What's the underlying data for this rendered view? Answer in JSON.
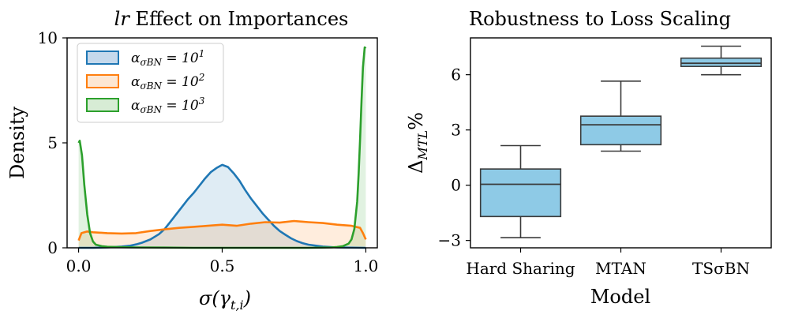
{
  "chart_data": [
    {
      "type": "area",
      "title_italic": "lr",
      "title_rest": " Effect on Importances",
      "xlabel": "σ(γt,i)",
      "ylabel": "Density",
      "xlim": [
        -0.04,
        1.04
      ],
      "ylim": [
        0,
        10
      ],
      "xticks": [
        "0.0",
        "0.5",
        "1.0"
      ],
      "xtick_values": [
        0.0,
        0.5,
        1.0
      ],
      "yticks": [
        "0",
        "5",
        "10"
      ],
      "ytick_values": [
        0,
        5,
        10
      ],
      "legend_position": "top-left",
      "series": [
        {
          "name": "ασBN = 10¹",
          "color": "#1f77b4",
          "fill": "#c5d9ec",
          "x": [
            0.0,
            0.05,
            0.1,
            0.15,
            0.18,
            0.2,
            0.22,
            0.25,
            0.28,
            0.3,
            0.32,
            0.34,
            0.36,
            0.38,
            0.4,
            0.42,
            0.44,
            0.46,
            0.48,
            0.5,
            0.52,
            0.54,
            0.56,
            0.58,
            0.6,
            0.62,
            0.64,
            0.66,
            0.68,
            0.7,
            0.72,
            0.74,
            0.76,
            0.78,
            0.8,
            0.85,
            0.9,
            1.0
          ],
          "y": [
            0.0,
            0.0,
            0.02,
            0.06,
            0.1,
            0.16,
            0.24,
            0.4,
            0.65,
            0.9,
            1.25,
            1.6,
            1.95,
            2.3,
            2.6,
            2.95,
            3.3,
            3.6,
            3.8,
            3.95,
            3.85,
            3.55,
            3.2,
            2.75,
            2.35,
            2.0,
            1.65,
            1.35,
            1.05,
            0.8,
            0.62,
            0.45,
            0.32,
            0.22,
            0.15,
            0.06,
            0.02,
            0.0
          ]
        },
        {
          "name": "ασBN = 10²",
          "color": "#ff7f0e",
          "fill": "#fde7d3",
          "x": [
            0.0,
            0.01,
            0.03,
            0.05,
            0.1,
            0.15,
            0.2,
            0.25,
            0.3,
            0.35,
            0.4,
            0.45,
            0.5,
            0.55,
            0.6,
            0.65,
            0.7,
            0.75,
            0.8,
            0.85,
            0.9,
            0.95,
            0.98,
            0.99,
            1.0
          ],
          "y": [
            0.35,
            0.7,
            0.78,
            0.74,
            0.7,
            0.68,
            0.7,
            0.8,
            0.88,
            0.95,
            1.0,
            1.05,
            1.1,
            1.05,
            1.15,
            1.22,
            1.2,
            1.28,
            1.22,
            1.18,
            1.1,
            1.05,
            0.95,
            0.7,
            0.4
          ]
        },
        {
          "name": "ασBN = 10³",
          "color": "#2ca02c",
          "fill": "#d7ecd5",
          "x": [
            0.0,
            0.004,
            0.012,
            0.02,
            0.03,
            0.04,
            0.05,
            0.06,
            0.08,
            0.1,
            0.15,
            0.2,
            0.3,
            0.4,
            0.5,
            0.6,
            0.7,
            0.8,
            0.85,
            0.88,
            0.9,
            0.92,
            0.94,
            0.95,
            0.96,
            0.97,
            0.975,
            0.98,
            0.985,
            0.99,
            0.996,
            1.0
          ],
          "y": [
            5.0,
            5.1,
            4.4,
            3.0,
            1.6,
            0.7,
            0.3,
            0.15,
            0.08,
            0.05,
            0.03,
            0.02,
            0.01,
            0.0,
            0.0,
            0.0,
            0.0,
            0.0,
            0.01,
            0.02,
            0.04,
            0.08,
            0.2,
            0.4,
            0.9,
            2.2,
            3.5,
            5.2,
            7.0,
            8.6,
            9.55,
            9.5
          ]
        }
      ]
    },
    {
      "type": "box",
      "title": "Robustness to Loss Scaling",
      "xlabel": "Model",
      "ylabel_main": "Δ",
      "ylabel_sub": "MTL",
      "ylabel_sup": "%",
      "ylim": [
        -3.4,
        8.0
      ],
      "yticks": [
        "−3",
        "0",
        "3",
        "6"
      ],
      "ytick_values": [
        -3,
        0,
        3,
        6
      ],
      "box_color": "#8ecae6",
      "categories": [
        "Hard Sharing",
        "MTAN",
        "TSσBN"
      ],
      "boxes": [
        {
          "whislo": -2.85,
          "q1": -1.7,
          "med": 0.05,
          "q3": 0.88,
          "whishi": 2.15
        },
        {
          "whislo": 1.85,
          "q1": 2.2,
          "med": 3.28,
          "q3": 3.75,
          "whishi": 5.65
        },
        {
          "whislo": 6.0,
          "q1": 6.45,
          "med": 6.62,
          "q3": 6.9,
          "whishi": 7.55
        }
      ]
    }
  ]
}
